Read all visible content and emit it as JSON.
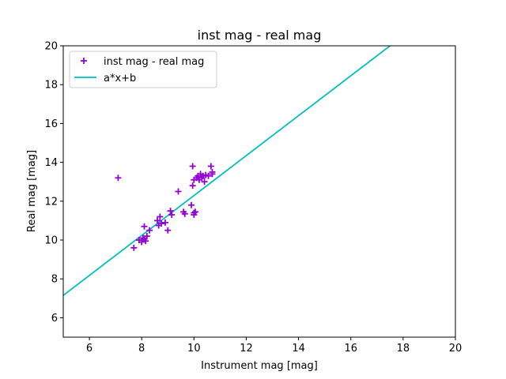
{
  "chart_data": {
    "type": "scatter",
    "title": "inst mag - real mag",
    "xlabel": "Instrument mag [mag]",
    "ylabel": "Real mag [mag]",
    "xlim": [
      5,
      20
    ],
    "ylim": [
      5,
      20
    ],
    "xticks": [
      6,
      8,
      10,
      12,
      14,
      16,
      18,
      20
    ],
    "yticks": [
      6,
      8,
      10,
      12,
      14,
      16,
      18,
      20
    ],
    "grid": false,
    "legend_position": "top-left",
    "series": [
      {
        "name": "inst mag - real mag",
        "kind": "scatter",
        "marker": "+",
        "color": "#9400d3",
        "points": [
          [
            7.1,
            13.2
          ],
          [
            7.7,
            9.6
          ],
          [
            7.9,
            10.0
          ],
          [
            8.0,
            9.9
          ],
          [
            8.05,
            10.1
          ],
          [
            8.1,
            10.05
          ],
          [
            8.15,
            9.95
          ],
          [
            8.1,
            10.7
          ],
          [
            8.2,
            10.2
          ],
          [
            8.3,
            10.5
          ],
          [
            8.6,
            11.0
          ],
          [
            8.65,
            10.75
          ],
          [
            8.7,
            11.2
          ],
          [
            8.75,
            10.85
          ],
          [
            8.9,
            10.9
          ],
          [
            9.0,
            10.5
          ],
          [
            9.1,
            11.5
          ],
          [
            9.15,
            11.3
          ],
          [
            9.4,
            12.5
          ],
          [
            9.6,
            11.45
          ],
          [
            9.65,
            11.35
          ],
          [
            9.9,
            11.8
          ],
          [
            9.95,
            12.8
          ],
          [
            9.95,
            13.8
          ],
          [
            10.0,
            11.4
          ],
          [
            10.0,
            11.3
          ],
          [
            10.05,
            11.45
          ],
          [
            10.0,
            13.1
          ],
          [
            10.1,
            13.2
          ],
          [
            10.15,
            13.3
          ],
          [
            10.2,
            13.1
          ],
          [
            10.25,
            13.4
          ],
          [
            10.3,
            13.2
          ],
          [
            10.35,
            13.3
          ],
          [
            10.4,
            13.0
          ],
          [
            10.45,
            13.35
          ],
          [
            10.55,
            13.3
          ],
          [
            10.65,
            13.8
          ],
          [
            10.7,
            13.5
          ],
          [
            10.7,
            13.4
          ]
        ]
      },
      {
        "name": "a*x+b",
        "kind": "line",
        "color": "#00bfbf",
        "points": [
          [
            5.0,
            7.15
          ],
          [
            17.5,
            20.0
          ]
        ]
      }
    ]
  }
}
